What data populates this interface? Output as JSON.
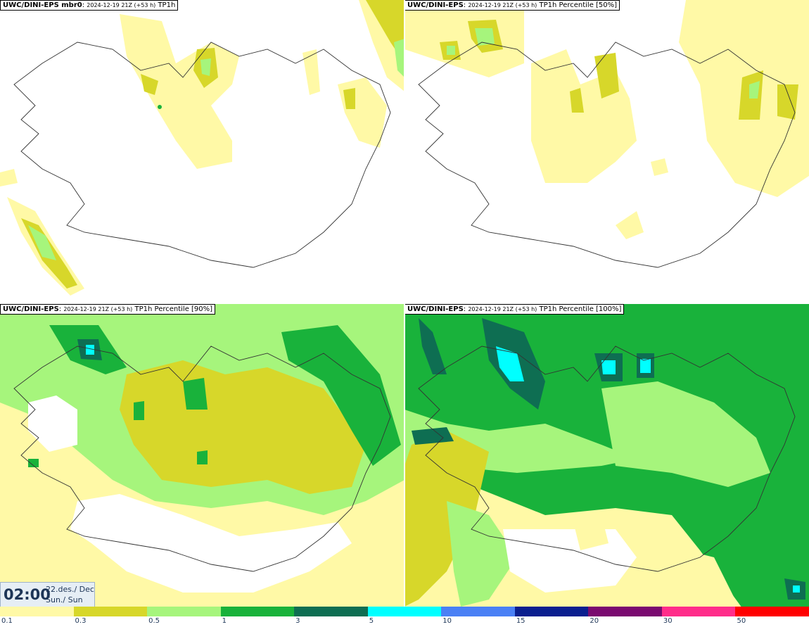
{
  "panels": [
    {
      "model": "UWC/DINI-EPS mbr0",
      "meta": "2024-12-19 21Z (+53 h)",
      "field": "TP1h"
    },
    {
      "model": "UWC/DINI-EPS",
      "meta": "2024-12-19 21Z (+53 h)",
      "field": "TP1h Percentile [50%]"
    },
    {
      "model": "UWC/DINI-EPS",
      "meta": "2024-12-19 21Z (+53 h)",
      "field": "TP1h Percentile [90%]"
    },
    {
      "model": "UWC/DINI-EPS",
      "meta": "2024-12-19 21Z (+53 h)",
      "field": "TP1h Percentile [100%]"
    }
  ],
  "time": {
    "clock": "02:00",
    "date": "22.des./ Dec",
    "day": "Sun./ Sun"
  },
  "colorbar": {
    "ticks": [
      "0.1",
      "0.3",
      "0.5",
      "1",
      "3",
      "5",
      "10",
      "15",
      "20",
      "30",
      "50"
    ],
    "colors": [
      "#fff9a6",
      "#d7d72a",
      "#a6f57c",
      "#19b23b",
      "#0e6e52",
      "#00ffff",
      "#4a80f5",
      "#0a1f8f",
      "#7a0a70",
      "#ff2d8a",
      "#ff0000"
    ]
  },
  "palette": {
    "c1": "#fff9a6",
    "c2": "#d7d72a",
    "c3": "#a6f57c",
    "c4": "#19b23b",
    "c5": "#0e6e52",
    "c6": "#00ffff",
    "coast": "#333333"
  }
}
